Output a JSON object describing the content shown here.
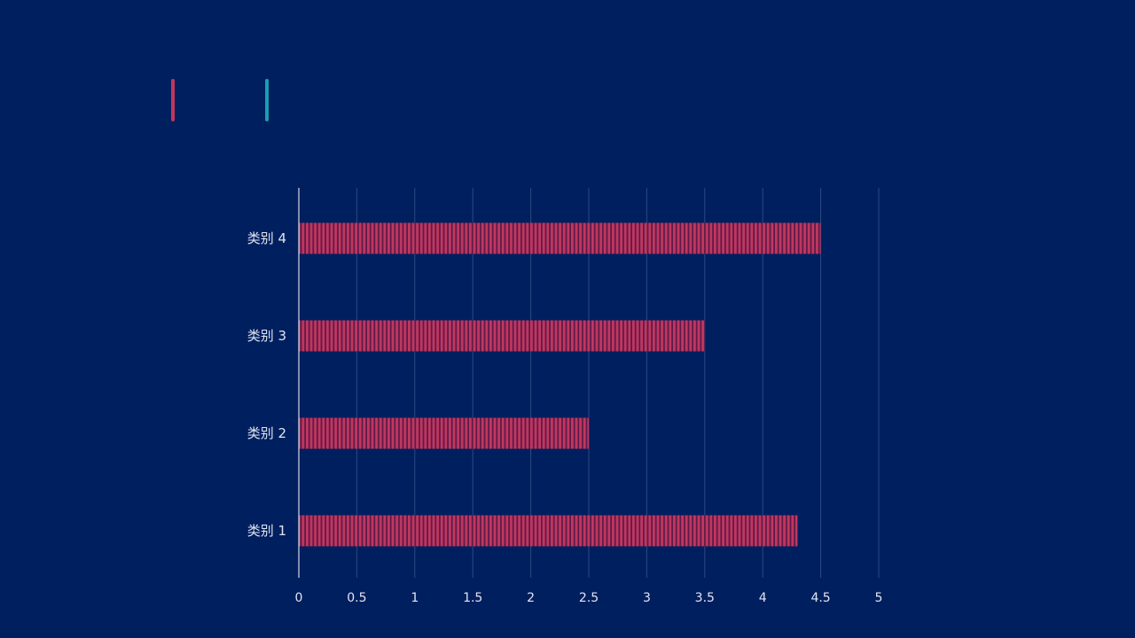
{
  "colors": {
    "background": "#001f5f",
    "series1": "#c0375f",
    "series1_gap": "#5e1a4a",
    "legend2": "#1a9db0",
    "grid": "#2a4a80",
    "axis": "#ffffff",
    "text": "#dfe6f2"
  },
  "chart_data": {
    "type": "bar",
    "orientation": "horizontal",
    "categories": [
      "类别 1",
      "类别 2",
      "类别 3",
      "类别 4"
    ],
    "series": [
      {
        "name": "",
        "values": [
          4.3,
          2.5,
          3.5,
          4.5
        ]
      }
    ],
    "xlim": [
      0,
      5
    ],
    "xticks": [
      "0",
      "0.5",
      "1",
      "1.5",
      "2",
      "2.5",
      "3",
      "3.5",
      "4",
      "4.5",
      "5"
    ],
    "grid": true,
    "legend": "top-left"
  }
}
